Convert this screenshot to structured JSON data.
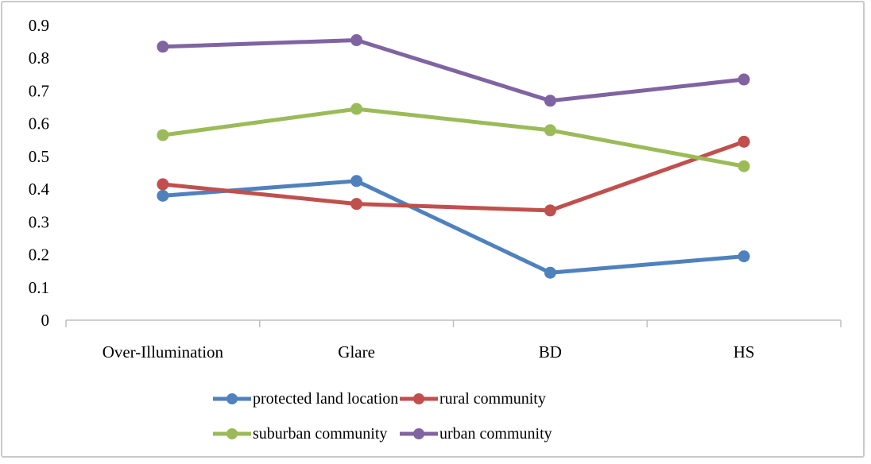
{
  "figure": {
    "background": "#ffffff",
    "frame_border_color": "#c9c9c9"
  },
  "chart_data": {
    "type": "line",
    "title": "",
    "xlabel": "",
    "ylabel": "",
    "categories": [
      "Over-Illumination",
      "Glare",
      "BD",
      "HS"
    ],
    "series": [
      {
        "name": "protected land location",
        "color": "#4F81BD",
        "values": [
          0.38,
          0.425,
          0.145,
          0.195
        ]
      },
      {
        "name": "rural community",
        "color": "#C0504D",
        "values": [
          0.415,
          0.355,
          0.335,
          0.545
        ]
      },
      {
        "name": "suburban community",
        "color": "#9BBB59",
        "values": [
          0.565,
          0.645,
          0.58,
          0.47
        ]
      },
      {
        "name": "urban community",
        "color": "#8064A2",
        "values": [
          0.835,
          0.855,
          0.67,
          0.735
        ]
      }
    ],
    "ylim": [
      0,
      0.9
    ],
    "y_ticks": [
      "0",
      "0.1",
      "0.2",
      "0.3",
      "0.4",
      "0.5",
      "0.6",
      "0.7",
      "0.8",
      "0.9"
    ],
    "grid": false,
    "legend_position": "bottom",
    "legend_rows": 2,
    "axis_color": "#BFBFBF",
    "text_color": "#000000"
  }
}
